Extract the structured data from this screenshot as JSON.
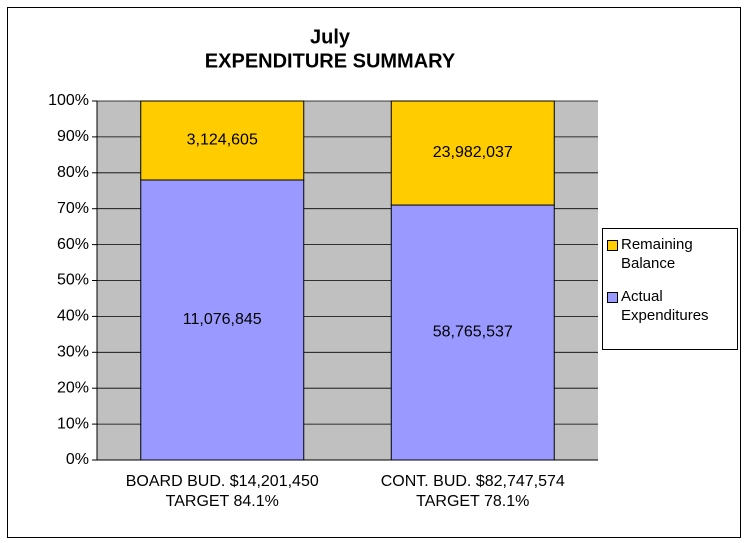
{
  "chart_data": {
    "type": "bar",
    "stack": "percent",
    "title": [
      "July",
      "EXPENDITURE SUMMARY"
    ],
    "categories": [
      [
        "BOARD BUD. $14,201,450",
        "TARGET 84.1%"
      ],
      [
        "CONT. BUD. $82,747,574",
        "TARGET 78.1%"
      ]
    ],
    "series": [
      {
        "name": "Actual Expenditures",
        "color": "#9999ff",
        "values": [
          11076845,
          58765537
        ],
        "value_labels": [
          "11,076,845",
          "58,765,537"
        ]
      },
      {
        "name": "Remaining Balance",
        "color": "#ffcc00",
        "values": [
          3124605,
          23982037
        ],
        "value_labels": [
          "3,124,605",
          "23,982,037"
        ]
      }
    ],
    "ylim": [
      0,
      100
    ],
    "yticks": [
      {
        "value": 0,
        "label": "0%"
      },
      {
        "value": 10,
        "label": "10%"
      },
      {
        "value": 20,
        "label": "20%"
      },
      {
        "value": 30,
        "label": "30%"
      },
      {
        "value": 40,
        "label": "40%"
      },
      {
        "value": 50,
        "label": "50%"
      },
      {
        "value": 60,
        "label": "60%"
      },
      {
        "value": 70,
        "label": "70%"
      },
      {
        "value": 80,
        "label": "80%"
      },
      {
        "value": 90,
        "label": "90%"
      },
      {
        "value": 100,
        "label": "100%"
      }
    ],
    "grid": true,
    "plot_background": "#c0c0c0",
    "legend": "right"
  }
}
